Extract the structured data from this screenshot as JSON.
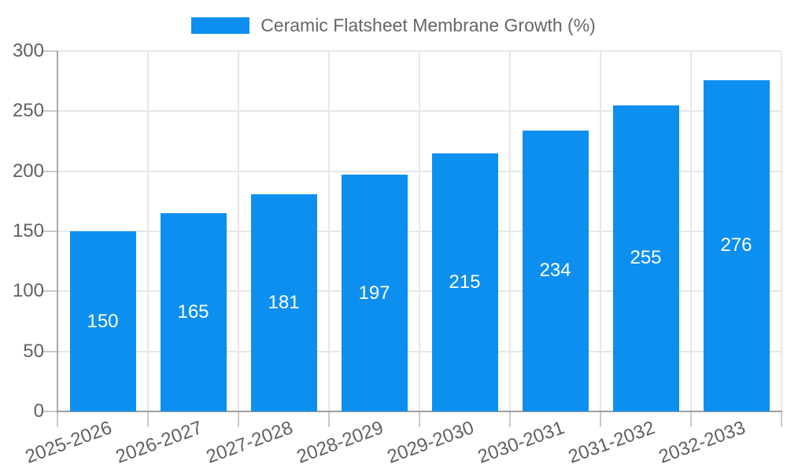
{
  "legend": {
    "label": "Ceramic Flatsheet Membrane Growth (%)"
  },
  "chart_data": {
    "type": "bar",
    "title": "Ceramic Flatsheet Membrane Growth (%)",
    "categories": [
      "2025-2026",
      "2026-2027",
      "2027-2028",
      "2028-2029",
      "2029-2030",
      "2030-2031",
      "2031-2032",
      "2032-2033"
    ],
    "values": [
      150,
      165,
      181,
      197,
      215,
      234,
      255,
      276
    ],
    "xlabel": "",
    "ylabel": "",
    "ylim": [
      0,
      300
    ],
    "ytick_step": 50,
    "ytick_labels": [
      "0",
      "50",
      "100",
      "150",
      "200",
      "250",
      "300"
    ],
    "grid": true,
    "legend_position": "top-center",
    "value_labels": "inside-center",
    "colors": {
      "bar": "#0d8ff0",
      "value_label": "#ffffff",
      "axis": "#9e9e9e",
      "grid": "#e7e7e7",
      "tick": "#c9c9c9",
      "text": "#616161",
      "legend_text": "#666666",
      "background": "#ffffff"
    }
  }
}
